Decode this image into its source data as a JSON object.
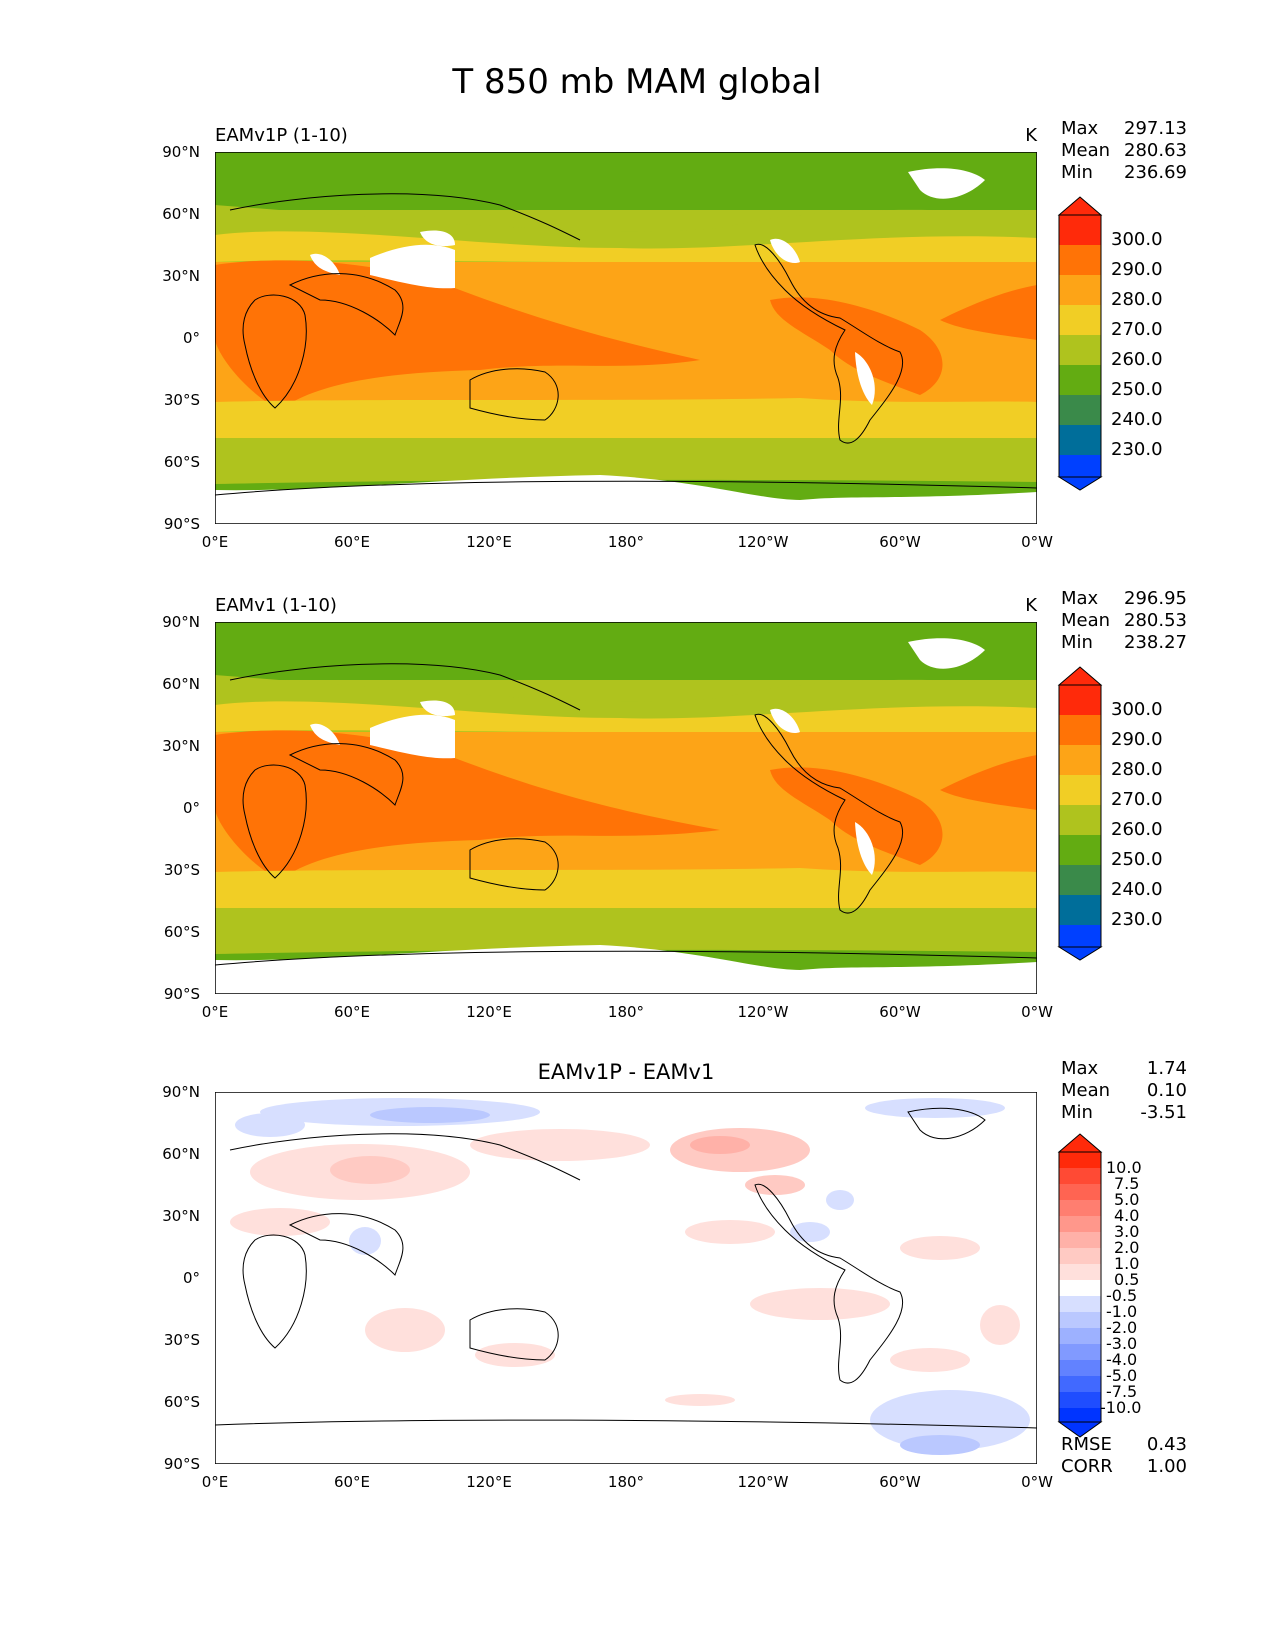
{
  "title": "T 850 mb MAM global",
  "lat_ticks": [
    "90°N",
    "60°N",
    "30°N",
    "0°",
    "30°S",
    "60°S",
    "90°S"
  ],
  "lon_ticks": [
    "0°E",
    "60°E",
    "120°E",
    "180°",
    "120°W",
    "60°W",
    "0°W"
  ],
  "stat_labels": {
    "max": "Max",
    "mean": "Mean",
    "min": "Min",
    "rmse": "RMSE",
    "corr": "CORR"
  },
  "panels": [
    {
      "id": "test",
      "name": "EAMv1P (1-10)",
      "units": "K",
      "stats": {
        "max": "297.13",
        "mean": "280.63",
        "min": "236.69"
      }
    },
    {
      "id": "ref",
      "name": "EAMv1 (1-10)",
      "units": "K",
      "stats": {
        "max": "296.95",
        "mean": "280.53",
        "min": "238.27"
      }
    },
    {
      "id": "diff",
      "name": "EAMv1P - EAMv1",
      "units": "",
      "stats": {
        "max": "1.74",
        "mean": "0.10",
        "min": "-3.51"
      },
      "rmse": "0.43",
      "corr": "1.00"
    }
  ],
  "colorbars": {
    "temperature": {
      "labels": [
        "300.0",
        "290.0",
        "280.0",
        "270.0",
        "260.0",
        "250.0",
        "240.0",
        "230.0"
      ],
      "colors_bottom_to_top": [
        "#0040ff",
        "#006e9a",
        "#3a8a4a",
        "#63ac12",
        "#afc31e",
        "#f1ce25",
        "#fda417",
        "#ff7306",
        "#ff2a0a"
      ]
    },
    "difference": {
      "labels": [
        "10.0",
        "7.5",
        "5.0",
        "4.0",
        "3.0",
        "2.0",
        "1.0",
        "0.5",
        "-0.5",
        "-1.0",
        "-2.0",
        "-3.0",
        "-4.0",
        "-5.0",
        "-7.5",
        "-10.0"
      ],
      "colors_bottom_to_top": [
        "#0034ff",
        "#1f4dff",
        "#4169ff",
        "#6282ff",
        "#819aff",
        "#9db1ff",
        "#bac8ff",
        "#d7dfff",
        "#ffffff",
        "#ffe0dc",
        "#ffcac3",
        "#ffb1a8",
        "#ff978b",
        "#ff7e70",
        "#ff6452",
        "#ff4a34",
        "#ff2a0a"
      ]
    }
  },
  "chart_data": {
    "type": "heatmap",
    "variable": "T",
    "level": "850 mb",
    "season": "MAM",
    "region": "global",
    "lon_range": [
      0,
      360
    ],
    "lat_range": [
      -90,
      90
    ],
    "panels": [
      {
        "name": "EAMv1P (1-10)",
        "units": "K",
        "max": 297.13,
        "mean": 280.63,
        "min": 236.69,
        "contour_levels": [
          230,
          240,
          250,
          260,
          270,
          280,
          290,
          300
        ]
      },
      {
        "name": "EAMv1 (1-10)",
        "units": "K",
        "max": 296.95,
        "mean": 280.53,
        "min": 238.27,
        "contour_levels": [
          230,
          240,
          250,
          260,
          270,
          280,
          290,
          300
        ]
      },
      {
        "name": "EAMv1P - EAMv1",
        "max": 1.74,
        "mean": 0.1,
        "min": -3.51,
        "rmse": 0.43,
        "corr": 1.0,
        "contour_levels": [
          -10,
          -7.5,
          -5,
          -4,
          -3,
          -2,
          -1,
          -0.5,
          0.5,
          1,
          2,
          3,
          4,
          5,
          7.5,
          10
        ]
      }
    ]
  }
}
